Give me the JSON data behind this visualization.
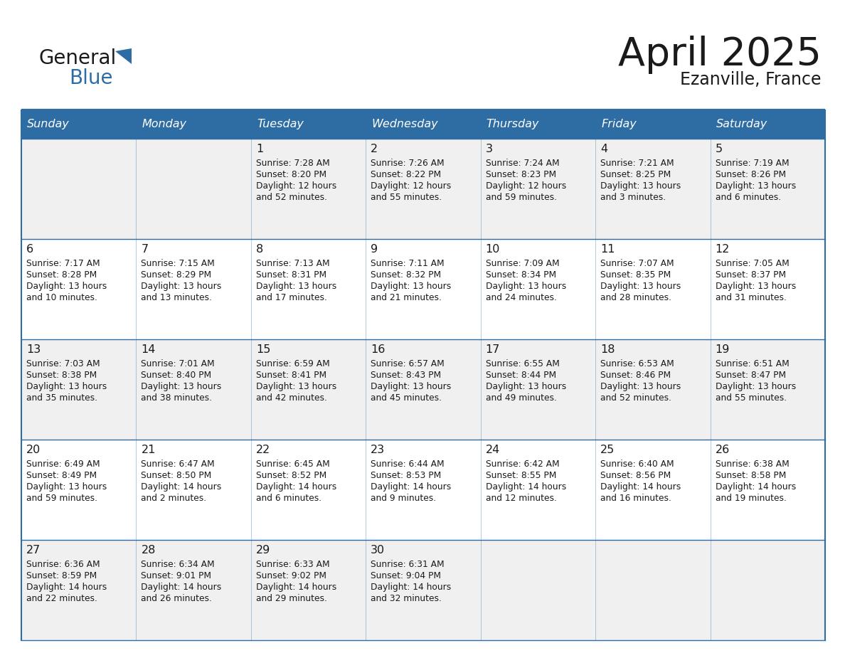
{
  "title": "April 2025",
  "subtitle": "Ezanville, France",
  "header_color": "#2E6DA4",
  "header_text_color": "#FFFFFF",
  "cell_bg_even": "#F0F0F0",
  "cell_bg_odd": "#FFFFFF",
  "border_color": "#2E6DA4",
  "text_color": "#1a1a1a",
  "days_of_week": [
    "Sunday",
    "Monday",
    "Tuesday",
    "Wednesday",
    "Thursday",
    "Friday",
    "Saturday"
  ],
  "weeks": [
    [
      {
        "day": "",
        "info": ""
      },
      {
        "day": "",
        "info": ""
      },
      {
        "day": "1",
        "info": "Sunrise: 7:28 AM\nSunset: 8:20 PM\nDaylight: 12 hours\nand 52 minutes."
      },
      {
        "day": "2",
        "info": "Sunrise: 7:26 AM\nSunset: 8:22 PM\nDaylight: 12 hours\nand 55 minutes."
      },
      {
        "day": "3",
        "info": "Sunrise: 7:24 AM\nSunset: 8:23 PM\nDaylight: 12 hours\nand 59 minutes."
      },
      {
        "day": "4",
        "info": "Sunrise: 7:21 AM\nSunset: 8:25 PM\nDaylight: 13 hours\nand 3 minutes."
      },
      {
        "day": "5",
        "info": "Sunrise: 7:19 AM\nSunset: 8:26 PM\nDaylight: 13 hours\nand 6 minutes."
      }
    ],
    [
      {
        "day": "6",
        "info": "Sunrise: 7:17 AM\nSunset: 8:28 PM\nDaylight: 13 hours\nand 10 minutes."
      },
      {
        "day": "7",
        "info": "Sunrise: 7:15 AM\nSunset: 8:29 PM\nDaylight: 13 hours\nand 13 minutes."
      },
      {
        "day": "8",
        "info": "Sunrise: 7:13 AM\nSunset: 8:31 PM\nDaylight: 13 hours\nand 17 minutes."
      },
      {
        "day": "9",
        "info": "Sunrise: 7:11 AM\nSunset: 8:32 PM\nDaylight: 13 hours\nand 21 minutes."
      },
      {
        "day": "10",
        "info": "Sunrise: 7:09 AM\nSunset: 8:34 PM\nDaylight: 13 hours\nand 24 minutes."
      },
      {
        "day": "11",
        "info": "Sunrise: 7:07 AM\nSunset: 8:35 PM\nDaylight: 13 hours\nand 28 minutes."
      },
      {
        "day": "12",
        "info": "Sunrise: 7:05 AM\nSunset: 8:37 PM\nDaylight: 13 hours\nand 31 minutes."
      }
    ],
    [
      {
        "day": "13",
        "info": "Sunrise: 7:03 AM\nSunset: 8:38 PM\nDaylight: 13 hours\nand 35 minutes."
      },
      {
        "day": "14",
        "info": "Sunrise: 7:01 AM\nSunset: 8:40 PM\nDaylight: 13 hours\nand 38 minutes."
      },
      {
        "day": "15",
        "info": "Sunrise: 6:59 AM\nSunset: 8:41 PM\nDaylight: 13 hours\nand 42 minutes."
      },
      {
        "day": "16",
        "info": "Sunrise: 6:57 AM\nSunset: 8:43 PM\nDaylight: 13 hours\nand 45 minutes."
      },
      {
        "day": "17",
        "info": "Sunrise: 6:55 AM\nSunset: 8:44 PM\nDaylight: 13 hours\nand 49 minutes."
      },
      {
        "day": "18",
        "info": "Sunrise: 6:53 AM\nSunset: 8:46 PM\nDaylight: 13 hours\nand 52 minutes."
      },
      {
        "day": "19",
        "info": "Sunrise: 6:51 AM\nSunset: 8:47 PM\nDaylight: 13 hours\nand 55 minutes."
      }
    ],
    [
      {
        "day": "20",
        "info": "Sunrise: 6:49 AM\nSunset: 8:49 PM\nDaylight: 13 hours\nand 59 minutes."
      },
      {
        "day": "21",
        "info": "Sunrise: 6:47 AM\nSunset: 8:50 PM\nDaylight: 14 hours\nand 2 minutes."
      },
      {
        "day": "22",
        "info": "Sunrise: 6:45 AM\nSunset: 8:52 PM\nDaylight: 14 hours\nand 6 minutes."
      },
      {
        "day": "23",
        "info": "Sunrise: 6:44 AM\nSunset: 8:53 PM\nDaylight: 14 hours\nand 9 minutes."
      },
      {
        "day": "24",
        "info": "Sunrise: 6:42 AM\nSunset: 8:55 PM\nDaylight: 14 hours\nand 12 minutes."
      },
      {
        "day": "25",
        "info": "Sunrise: 6:40 AM\nSunset: 8:56 PM\nDaylight: 14 hours\nand 16 minutes."
      },
      {
        "day": "26",
        "info": "Sunrise: 6:38 AM\nSunset: 8:58 PM\nDaylight: 14 hours\nand 19 minutes."
      }
    ],
    [
      {
        "day": "27",
        "info": "Sunrise: 6:36 AM\nSunset: 8:59 PM\nDaylight: 14 hours\nand 22 minutes."
      },
      {
        "day": "28",
        "info": "Sunrise: 6:34 AM\nSunset: 9:01 PM\nDaylight: 14 hours\nand 26 minutes."
      },
      {
        "day": "29",
        "info": "Sunrise: 6:33 AM\nSunset: 9:02 PM\nDaylight: 14 hours\nand 29 minutes."
      },
      {
        "day": "30",
        "info": "Sunrise: 6:31 AM\nSunset: 9:04 PM\nDaylight: 14 hours\nand 32 minutes."
      },
      {
        "day": "",
        "info": ""
      },
      {
        "day": "",
        "info": ""
      },
      {
        "day": "",
        "info": ""
      }
    ]
  ],
  "logo_general_color": "#1a1a1a",
  "logo_blue_color": "#2E6DA4",
  "logo_triangle_color": "#2E6DA4"
}
